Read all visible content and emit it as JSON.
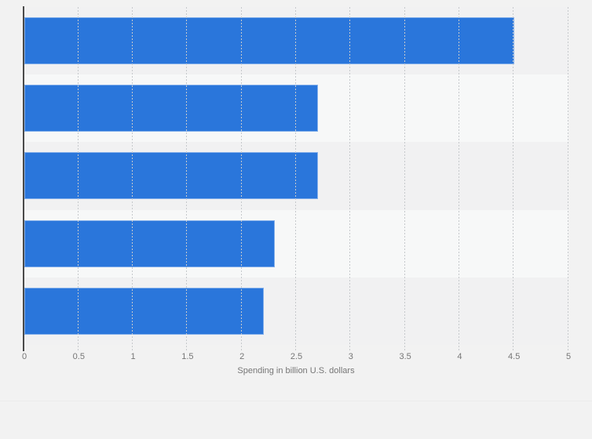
{
  "chart_data": {
    "type": "bar",
    "orientation": "horizontal",
    "categories": [
      "",
      "",
      "",
      "",
      ""
    ],
    "values": [
      4.5,
      2.7,
      2.7,
      2.3,
      2.2
    ],
    "title": "",
    "xlabel": "Spending in billion U.S. dollars",
    "ylabel": "",
    "xlim": [
      0,
      5
    ],
    "x_ticks": [
      0,
      0.5,
      1,
      1.5,
      2,
      2.5,
      3,
      3.5,
      4,
      4.5,
      5
    ],
    "x_tick_labels": [
      "0",
      "0.5",
      "1",
      "1.5",
      "2",
      "2.5",
      "3",
      "3.5",
      "4",
      "4.5",
      "5"
    ],
    "grid": "vertical-dotted",
    "legend": "none",
    "colors": {
      "bar": "#2a76db",
      "background": "#f2f2f2",
      "band_dark": "#f1f1f2",
      "band_light": "#f7f8f8",
      "gridline": "#c6c9cc",
      "axis_line": "#4a4a4a",
      "text": "#767676"
    }
  }
}
